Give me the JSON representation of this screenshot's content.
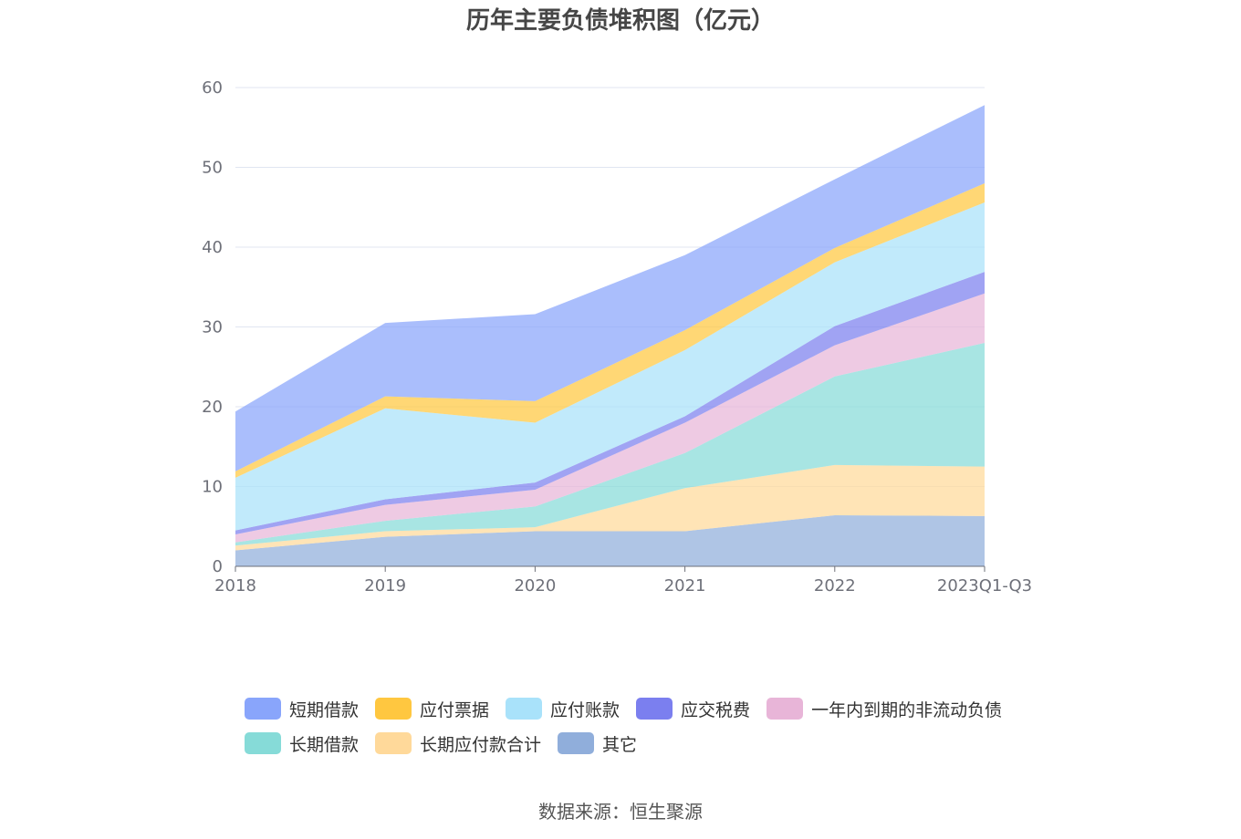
{
  "chart_data": {
    "type": "area",
    "stacked": true,
    "title": "历年主要负债堆积图（亿元）",
    "source": "数据来源：恒生聚源",
    "categories": [
      "2018",
      "2019",
      "2020",
      "2021",
      "2022",
      "2023Q1-Q3"
    ],
    "y_ticks": [
      "0",
      "10",
      "20",
      "30",
      "40",
      "50",
      "60"
    ],
    "ylim": [
      0,
      60
    ],
    "legend_position": "bottom",
    "series": [
      {
        "name": "其它",
        "color": "#90aedb",
        "values": [
          2.0,
          3.7,
          4.4,
          4.4,
          6.4,
          6.3
        ]
      },
      {
        "name": "长期应付款合计",
        "color": "#ffd99a",
        "values": [
          0.6,
          0.7,
          0.5,
          5.4,
          6.3,
          6.2
        ]
      },
      {
        "name": "长期借款",
        "color": "#86dbd8",
        "values": [
          0.4,
          1.3,
          2.6,
          4.4,
          11.1,
          15.5
        ]
      },
      {
        "name": "一年内到期的非流动负债",
        "color": "#e8b5d8",
        "values": [
          1.0,
          2.0,
          2.1,
          3.8,
          3.9,
          6.2
        ]
      },
      {
        "name": "应交税费",
        "color": "#7b7fef",
        "values": [
          0.5,
          0.7,
          0.9,
          0.8,
          2.4,
          2.7
        ]
      },
      {
        "name": "应付账款",
        "color": "#a9e2fa",
        "values": [
          6.6,
          11.4,
          7.5,
          8.3,
          8.0,
          8.7
        ]
      },
      {
        "name": "应付票据",
        "color": "#ffc740",
        "values": [
          0.8,
          1.5,
          2.7,
          2.5,
          1.8,
          2.4
        ]
      },
      {
        "name": "短期借款",
        "color": "#89a5fb",
        "values": [
          7.5,
          9.2,
          10.9,
          9.4,
          8.6,
          9.8
        ]
      }
    ],
    "legend_rows": [
      [
        "短期借款",
        "应付票据",
        "应付账款",
        "应交税费",
        "一年内到期的非流动负债"
      ],
      [
        "长期借款",
        "长期应付款合计",
        "其它"
      ]
    ]
  }
}
